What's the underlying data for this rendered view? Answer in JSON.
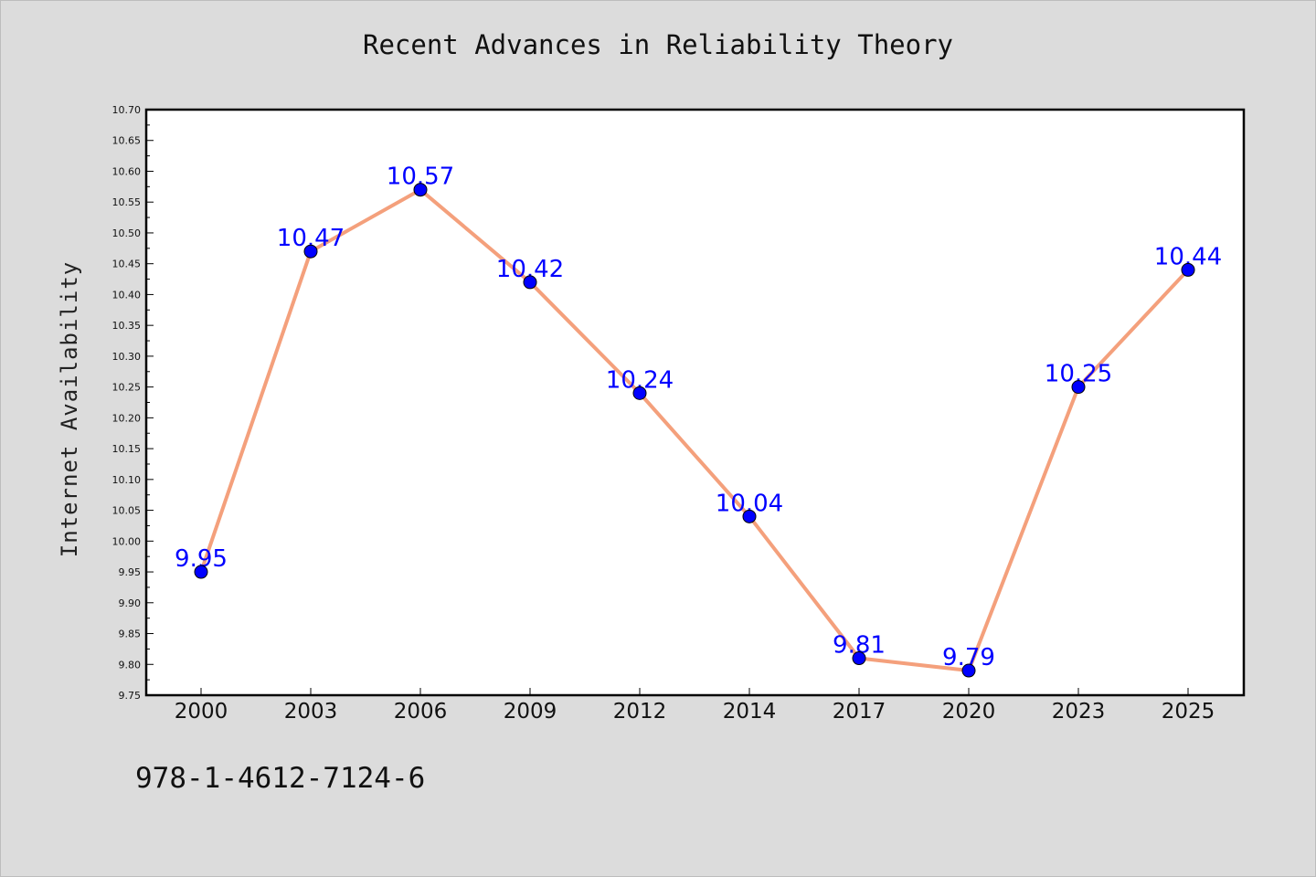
{
  "chart_data": {
    "type": "line",
    "title": "Recent Advances in Reliability Theory",
    "xlabel": "",
    "ylabel": "Internet Availability",
    "categories": [
      "2000",
      "2003",
      "2006",
      "2009",
      "2012",
      "2014",
      "2017",
      "2020",
      "2023",
      "2025"
    ],
    "values": [
      9.95,
      10.47,
      10.57,
      10.42,
      10.24,
      10.04,
      9.81,
      9.79,
      10.25,
      10.44
    ],
    "data_labels": [
      "9.95",
      "10.47",
      "10.57",
      "10.42",
      "10.24",
      "10.04",
      "9.81",
      "9.79",
      "10.25",
      "10.44"
    ],
    "ylim": [
      9.75,
      10.7
    ],
    "yticks": [
      "9.75",
      "9.80",
      "9.85",
      "9.90",
      "9.95",
      "10.00",
      "10.05",
      "10.10",
      "10.15",
      "10.20",
      "10.25",
      "10.30",
      "10.35",
      "10.40",
      "10.45",
      "10.50",
      "10.55",
      "10.60",
      "10.65",
      "10.70"
    ],
    "grid": false,
    "line_color": "#f4a07c",
    "marker_color": "#0000ff",
    "label_color": "#0000ff"
  },
  "footer": {
    "isbn": "978-1-4612-7124-6"
  }
}
